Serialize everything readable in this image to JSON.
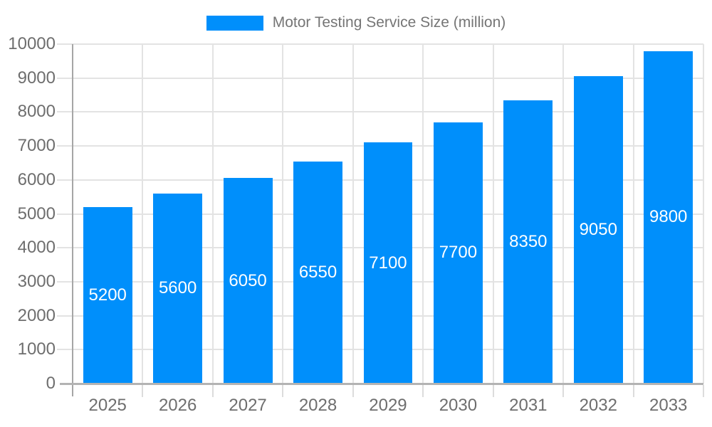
{
  "chart_data": {
    "type": "bar",
    "title": "",
    "legend": {
      "label": "Motor Testing Service Size (million)",
      "position": "top"
    },
    "categories": [
      "2025",
      "2026",
      "2027",
      "2028",
      "2029",
      "2030",
      "2031",
      "2032",
      "2033"
    ],
    "values": [
      5200,
      5600,
      6050,
      6550,
      7100,
      7700,
      8350,
      9050,
      9800
    ],
    "series": [
      {
        "name": "Motor Testing Service Size (million)",
        "values": [
          5200,
          5600,
          6050,
          6550,
          7100,
          7700,
          8350,
          9050,
          9800
        ]
      }
    ],
    "xlabel": "",
    "ylabel": "",
    "ylim": [
      0,
      10000
    ],
    "ytick_step": 1000,
    "grid": true,
    "colors": {
      "bar": "#008FFB",
      "data_label": "#ffffff"
    }
  }
}
